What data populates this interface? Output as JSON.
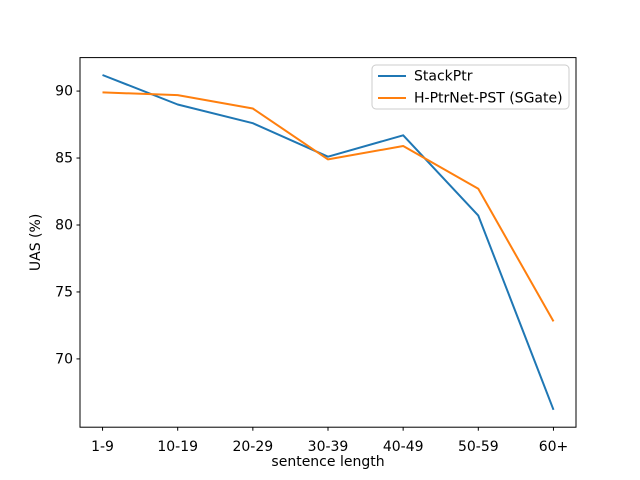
{
  "chart_data": {
    "type": "line",
    "title": "",
    "xlabel": "sentence length",
    "ylabel": "UAS (%)",
    "categories": [
      "1-9",
      "10-19",
      "20-29",
      "30-39",
      "40-49",
      "50-59",
      "60+"
    ],
    "series": [
      {
        "name": "StackPtr",
        "color": "#1f77b4",
        "values": [
          91.2,
          89.0,
          87.6,
          85.1,
          86.7,
          80.7,
          66.2
        ]
      },
      {
        "name": "H-PtrNet-PST (SGate)",
        "color": "#ff7f0e",
        "values": [
          89.9,
          89.7,
          88.7,
          84.9,
          85.9,
          82.7,
          72.8
        ]
      }
    ],
    "yticks": [
      90,
      85,
      80,
      75,
      70
    ],
    "ytick_labels": [
      "90",
      "85",
      "80",
      "75",
      "70"
    ],
    "ylim": [
      64.9,
      92.5
    ],
    "grid": false,
    "legend_position": "upper right",
    "background_color": "#ffffff",
    "spine_color": "#000000"
  }
}
